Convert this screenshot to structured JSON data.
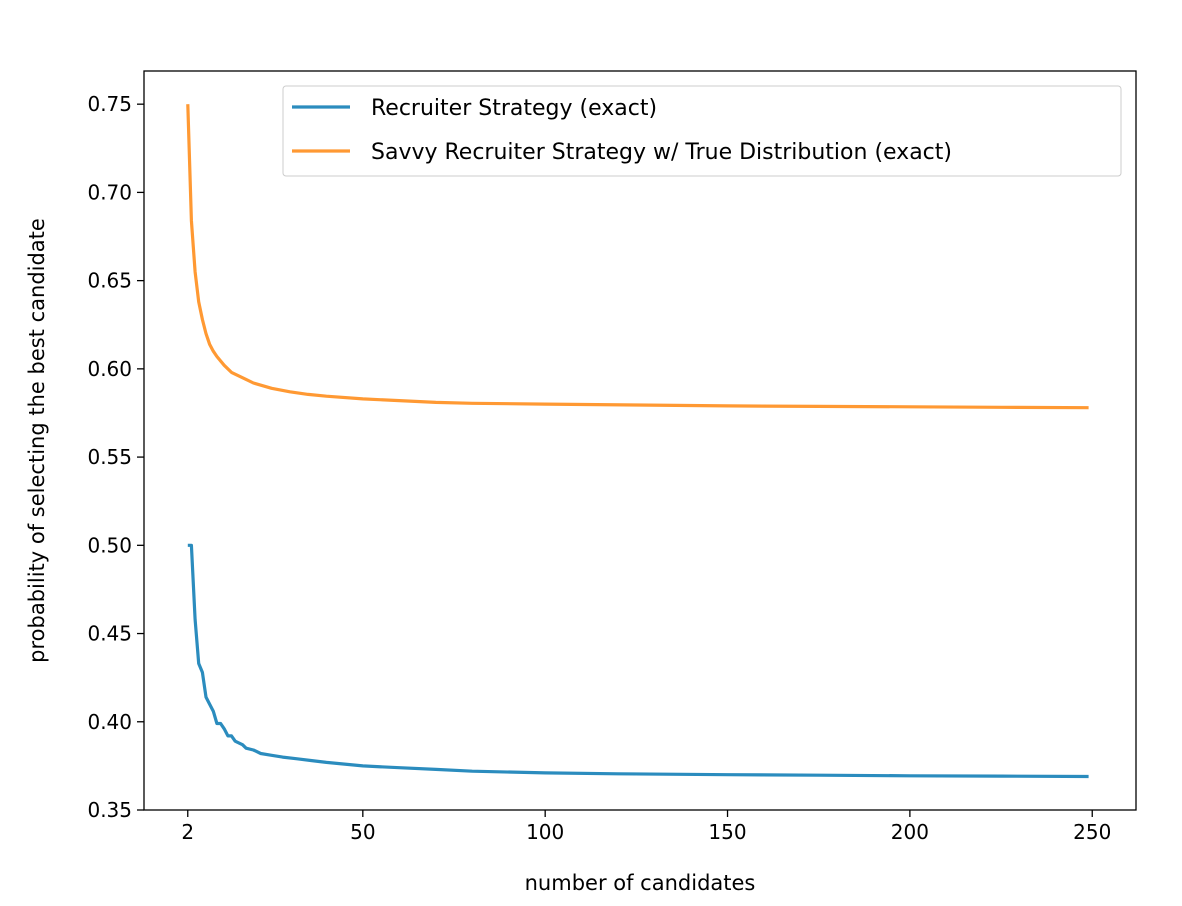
{
  "chart_data": {
    "type": "line",
    "title": "",
    "xlabel": "number of candidates",
    "ylabel": "probability of selecting the best candidate",
    "xlim": [
      -10,
      262
    ],
    "ylim": [
      0.35,
      0.7688
    ],
    "xticks": [
      2,
      50,
      100,
      150,
      200,
      250
    ],
    "xtick_labels": [
      "2",
      "50",
      "100",
      "150",
      "200",
      "250"
    ],
    "yticks": [
      0.35,
      0.4,
      0.45,
      0.5,
      0.55,
      0.6,
      0.65,
      0.7,
      0.75
    ],
    "ytick_labels": [
      "0.35",
      "0.40",
      "0.45",
      "0.50",
      "0.55",
      "0.60",
      "0.65",
      "0.70",
      "0.75"
    ],
    "grid": false,
    "legend_position": "top-right",
    "series": [
      {
        "name": "Recruiter Strategy (exact)",
        "color": "#2b8cbe",
        "points": [
          [
            2,
            0.5
          ],
          [
            3,
            0.5
          ],
          [
            4,
            0.458
          ],
          [
            5,
            0.433
          ],
          [
            6,
            0.428
          ],
          [
            7,
            0.414
          ],
          [
            8,
            0.41
          ],
          [
            9,
            0.406
          ],
          [
            10,
            0.399
          ],
          [
            11,
            0.399
          ],
          [
            12,
            0.396
          ],
          [
            13,
            0.392
          ],
          [
            14,
            0.392
          ],
          [
            15,
            0.389
          ],
          [
            16,
            0.388
          ],
          [
            17,
            0.387
          ],
          [
            18,
            0.385
          ],
          [
            20,
            0.384
          ],
          [
            22,
            0.382
          ],
          [
            25,
            0.381
          ],
          [
            28,
            0.38
          ],
          [
            32,
            0.379
          ],
          [
            36,
            0.378
          ],
          [
            40,
            0.377
          ],
          [
            45,
            0.376
          ],
          [
            50,
            0.375
          ],
          [
            60,
            0.374
          ],
          [
            70,
            0.373
          ],
          [
            80,
            0.372
          ],
          [
            100,
            0.371
          ],
          [
            120,
            0.3705
          ],
          [
            150,
            0.37
          ],
          [
            175,
            0.3697
          ],
          [
            200,
            0.3694
          ],
          [
            225,
            0.3692
          ],
          [
            249,
            0.369
          ]
        ]
      },
      {
        "name": "Savvy Recruiter Strategy w/ True Distribution (exact)",
        "color": "#ff9933",
        "points": [
          [
            2,
            0.75
          ],
          [
            3,
            0.684
          ],
          [
            4,
            0.655
          ],
          [
            5,
            0.638
          ],
          [
            6,
            0.628
          ],
          [
            7,
            0.62
          ],
          [
            8,
            0.614
          ],
          [
            9,
            0.61
          ],
          [
            10,
            0.607
          ],
          [
            12,
            0.602
          ],
          [
            14,
            0.598
          ],
          [
            16,
            0.596
          ],
          [
            18,
            0.594
          ],
          [
            20,
            0.592
          ],
          [
            25,
            0.589
          ],
          [
            30,
            0.587
          ],
          [
            35,
            0.5855
          ],
          [
            40,
            0.5845
          ],
          [
            50,
            0.583
          ],
          [
            60,
            0.582
          ],
          [
            70,
            0.581
          ],
          [
            80,
            0.5805
          ],
          [
            100,
            0.58
          ],
          [
            125,
            0.5795
          ],
          [
            150,
            0.579
          ],
          [
            175,
            0.5787
          ],
          [
            200,
            0.5785
          ],
          [
            225,
            0.5782
          ],
          [
            249,
            0.578
          ]
        ]
      }
    ]
  }
}
